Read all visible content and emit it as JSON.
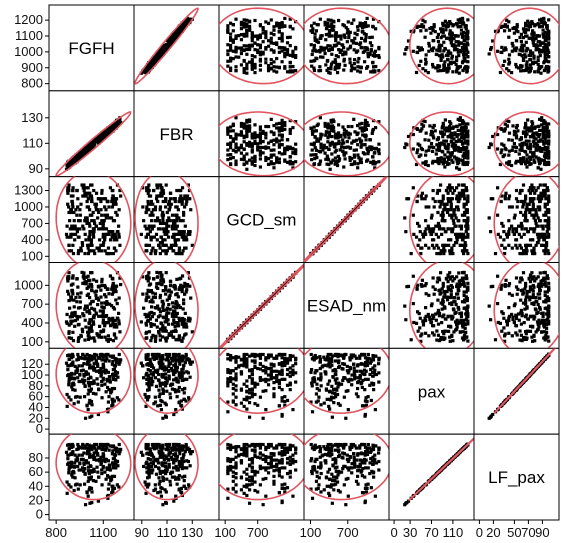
{
  "chart_data": {
    "type": "scatter",
    "layout": "scatterplot-matrix",
    "title": "",
    "variables": [
      {
        "name": "FGFH",
        "ticks": [
          800,
          900,
          1000,
          1100,
          1200
        ],
        "range": [
          780,
          1270
        ],
        "axis_ticks": [
          800,
          1100
        ],
        "axis_tick_labels": [
          "800",
          "1100"
        ]
      },
      {
        "name": "FBR",
        "ticks": [
          90,
          110,
          130
        ],
        "range": [
          87,
          148
        ],
        "axis_ticks": [
          90,
          110,
          130
        ],
        "axis_tick_labels": [
          "90",
          "110",
          "130"
        ]
      },
      {
        "name": "GCD_sm",
        "ticks": [
          100,
          400,
          700,
          1000,
          1300
        ],
        "range": [
          60,
          1480
        ],
        "axis_ticks": [
          100,
          700
        ],
        "axis_tick_labels": [
          "100",
          "700"
        ]
      },
      {
        "name": "ESAD_nm",
        "ticks": [
          100,
          400,
          700,
          1000
        ],
        "range": [
          60,
          1300
        ],
        "axis_ticks": [
          100,
          700
        ],
        "axis_tick_labels": [
          "100",
          "700"
        ]
      },
      {
        "name": "pax",
        "ticks": [
          0,
          20,
          40,
          60,
          80,
          100,
          120
        ],
        "range": [
          -2,
          142
        ],
        "axis_ticks": [
          0,
          30,
          70,
          110
        ],
        "axis_tick_labels": [
          "0",
          "30",
          "70",
          "110"
        ]
      },
      {
        "name": "LF_pax",
        "ticks": [
          0,
          20,
          40,
          60,
          80
        ],
        "range": [
          -2,
          108
        ],
        "axis_ticks": [
          0,
          20,
          50,
          70,
          90
        ],
        "axis_tick_labels": [
          "0",
          "20",
          "50",
          "70",
          "90"
        ]
      }
    ],
    "linear_relations": [
      {
        "vars": [
          "FGFH",
          "FBR"
        ],
        "slope_per_unit": 0.105
      },
      {
        "vars": [
          "GCD_sm",
          "ESAD_nm"
        ],
        "slope_per_unit": 0.85
      },
      {
        "vars": [
          "pax",
          "LF_pax"
        ],
        "slope_per_unit": 0.72
      }
    ],
    "density_ellipse_color": "#e05560",
    "point_color": "#000000",
    "grid": false,
    "legend": "none"
  }
}
